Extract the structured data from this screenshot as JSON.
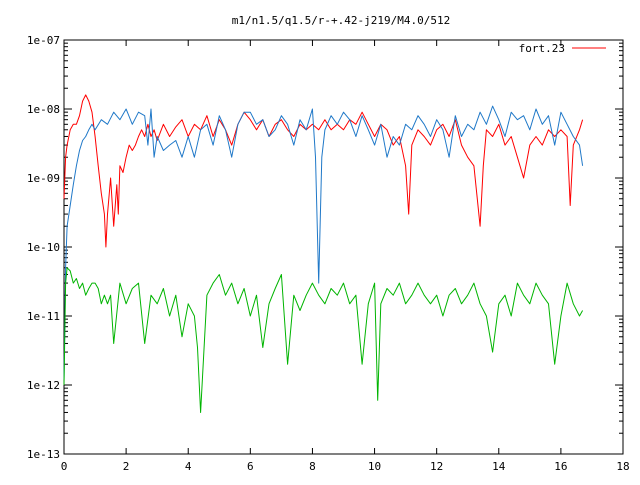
{
  "chart_data": {
    "type": "line",
    "title": "m1/n1.5/q1.5/r-+.42-j219/M4.0/512",
    "xlabel": "",
    "ylabel": "",
    "xlim": [
      0,
      18
    ],
    "ylim": [
      1e-13,
      1e-07
    ],
    "yscale": "log",
    "grid": false,
    "legend_position": "top-right",
    "x_ticks": [
      0,
      2,
      4,
      6,
      8,
      10,
      12,
      14,
      16,
      18
    ],
    "x_tick_labels": [
      "0",
      "2",
      "4",
      "6",
      "8",
      "10",
      "12",
      "14",
      "16",
      "18"
    ],
    "y_ticks": [
      1e-13,
      1e-12,
      1e-11,
      1e-10,
      1e-09,
      1e-08,
      1e-07
    ],
    "y_tick_labels": [
      "1e-13",
      "1e-12",
      "1e-11",
      "1e-10",
      "1e-09",
      "1e-08",
      "1e-07"
    ],
    "series": [
      {
        "name": "fort.23",
        "color": "#ff0000",
        "x": [
          0.0,
          0.05,
          0.1,
          0.2,
          0.3,
          0.4,
          0.5,
          0.6,
          0.7,
          0.8,
          0.9,
          1.0,
          1.1,
          1.2,
          1.3,
          1.35,
          1.4,
          1.5,
          1.6,
          1.7,
          1.75,
          1.8,
          1.9,
          2.0,
          2.1,
          2.2,
          2.3,
          2.4,
          2.5,
          2.6,
          2.7,
          2.8,
          2.9,
          3.0,
          3.2,
          3.4,
          3.6,
          3.8,
          4.0,
          4.2,
          4.4,
          4.6,
          4.8,
          5.0,
          5.2,
          5.4,
          5.6,
          5.8,
          6.0,
          6.2,
          6.4,
          6.6,
          6.8,
          7.0,
          7.2,
          7.4,
          7.6,
          7.8,
          8.0,
          8.2,
          8.4,
          8.6,
          8.8,
          9.0,
          9.2,
          9.4,
          9.6,
          9.8,
          10.0,
          10.2,
          10.4,
          10.6,
          10.8,
          11.0,
          11.1,
          11.2,
          11.4,
          11.6,
          11.8,
          12.0,
          12.2,
          12.4,
          12.6,
          12.8,
          13.0,
          13.2,
          13.4,
          13.5,
          13.6,
          13.8,
          14.0,
          14.2,
          14.4,
          14.6,
          14.8,
          15.0,
          15.2,
          15.4,
          15.6,
          15.8,
          16.0,
          16.2,
          16.3,
          16.4,
          16.6,
          16.7
        ],
        "y": [
          5e-10,
          2e-09,
          3e-09,
          5e-09,
          6e-09,
          6e-09,
          8e-09,
          1.3e-08,
          1.6e-08,
          1.3e-08,
          9e-09,
          4e-09,
          1.5e-09,
          6e-10,
          3e-10,
          1e-10,
          3e-10,
          1e-09,
          2e-10,
          8e-10,
          3e-10,
          1.5e-09,
          1.2e-09,
          2e-09,
          3e-09,
          2.5e-09,
          3e-09,
          4e-09,
          5e-09,
          4e-09,
          6e-09,
          4e-09,
          5e-09,
          3.5e-09,
          6e-09,
          4e-09,
          5.5e-09,
          7e-09,
          4e-09,
          6e-09,
          5e-09,
          8e-09,
          4e-09,
          7e-09,
          5e-09,
          3e-09,
          6e-09,
          9e-09,
          7e-09,
          5e-09,
          7e-09,
          4e-09,
          6e-09,
          7e-09,
          5e-09,
          4e-09,
          6e-09,
          5e-09,
          6e-09,
          5e-09,
          7e-09,
          5e-09,
          6e-09,
          5e-09,
          7e-09,
          6e-09,
          9e-09,
          6e-09,
          4e-09,
          6e-09,
          5e-09,
          3e-09,
          4e-09,
          1.5e-09,
          3e-10,
          3e-09,
          5e-09,
          4e-09,
          3e-09,
          5e-09,
          6e-09,
          4e-09,
          7e-09,
          3e-09,
          2e-09,
          1.5e-09,
          2e-10,
          1.5e-09,
          5e-09,
          4e-09,
          6e-09,
          3e-09,
          4e-09,
          2e-09,
          1e-09,
          3e-09,
          4e-09,
          3e-09,
          5e-09,
          4e-09,
          5e-09,
          4e-09,
          4e-10,
          3e-09,
          5e-09,
          7e-09
        ]
      },
      {
        "color": "#1f78c8",
        "x": [
          0.0,
          0.05,
          0.1,
          0.2,
          0.3,
          0.4,
          0.5,
          0.6,
          0.7,
          0.8,
          0.9,
          1.0,
          1.2,
          1.4,
          1.6,
          1.8,
          2.0,
          2.2,
          2.4,
          2.6,
          2.7,
          2.8,
          2.9,
          3.0,
          3.2,
          3.4,
          3.6,
          3.8,
          4.0,
          4.2,
          4.4,
          4.6,
          4.8,
          5.0,
          5.2,
          5.4,
          5.6,
          5.8,
          6.0,
          6.2,
          6.4,
          6.6,
          6.8,
          7.0,
          7.2,
          7.4,
          7.6,
          7.8,
          8.0,
          8.1,
          8.2,
          8.3,
          8.4,
          8.6,
          8.8,
          9.0,
          9.2,
          9.4,
          9.6,
          9.8,
          10.0,
          10.2,
          10.4,
          10.6,
          10.8,
          11.0,
          11.2,
          11.4,
          11.6,
          11.8,
          12.0,
          12.2,
          12.4,
          12.6,
          12.8,
          13.0,
          13.2,
          13.4,
          13.6,
          13.8,
          14.0,
          14.2,
          14.4,
          14.6,
          14.8,
          15.0,
          15.2,
          15.4,
          15.6,
          15.8,
          16.0,
          16.2,
          16.4,
          16.6,
          16.7
        ],
        "y": [
          1.2e-12,
          5e-11,
          2e-10,
          4e-10,
          8e-10,
          1.5e-09,
          2.5e-09,
          3.5e-09,
          4e-09,
          5e-09,
          6e-09,
          5e-09,
          7e-09,
          6e-09,
          9e-09,
          7e-09,
          1e-08,
          6e-09,
          9e-09,
          8e-09,
          3e-09,
          1e-08,
          2e-09,
          4e-09,
          2.5e-09,
          3e-09,
          3.5e-09,
          2e-09,
          4e-09,
          2e-09,
          5e-09,
          6e-09,
          3e-09,
          8e-09,
          5e-09,
          2e-09,
          6e-09,
          9e-09,
          9e-09,
          6e-09,
          7e-09,
          4e-09,
          5e-09,
          8e-09,
          6e-09,
          3e-09,
          7e-09,
          5e-09,
          1e-08,
          2e-09,
          3e-11,
          2e-09,
          5e-09,
          8e-09,
          6e-09,
          9e-09,
          7e-09,
          4e-09,
          8e-09,
          5e-09,
          3e-09,
          6e-09,
          2e-09,
          4e-09,
          3e-09,
          6e-09,
          5e-09,
          8e-09,
          6e-09,
          4e-09,
          7e-09,
          5e-09,
          2e-09,
          8e-09,
          4e-09,
          6e-09,
          5e-09,
          9e-09,
          6e-09,
          1.1e-08,
          7e-09,
          4e-09,
          9e-09,
          7e-09,
          8e-09,
          5e-09,
          1e-08,
          6e-09,
          8e-09,
          3e-09,
          9e-09,
          6e-09,
          4e-09,
          3e-09,
          1.5e-09
        ]
      },
      {
        "color": "#00b400",
        "x": [
          0.0,
          0.05,
          0.1,
          0.2,
          0.3,
          0.4,
          0.5,
          0.6,
          0.7,
          0.8,
          0.9,
          1.0,
          1.1,
          1.2,
          1.3,
          1.4,
          1.5,
          1.6,
          1.8,
          2.0,
          2.2,
          2.4,
          2.6,
          2.8,
          3.0,
          3.2,
          3.4,
          3.6,
          3.8,
          4.0,
          4.2,
          4.3,
          4.4,
          4.6,
          4.8,
          5.0,
          5.2,
          5.4,
          5.6,
          5.8,
          6.0,
          6.2,
          6.4,
          6.6,
          6.8,
          7.0,
          7.2,
          7.4,
          7.6,
          7.8,
          8.0,
          8.2,
          8.4,
          8.6,
          8.8,
          9.0,
          9.2,
          9.4,
          9.6,
          9.8,
          10.0,
          10.1,
          10.2,
          10.4,
          10.6,
          10.8,
          11.0,
          11.2,
          11.4,
          11.6,
          11.8,
          12.0,
          12.2,
          12.4,
          12.6,
          12.8,
          13.0,
          13.2,
          13.4,
          13.6,
          13.8,
          14.0,
          14.2,
          14.4,
          14.6,
          14.8,
          15.0,
          15.2,
          15.4,
          15.6,
          15.8,
          16.0,
          16.2,
          16.4,
          16.6,
          16.7
        ],
        "y": [
          1e-12,
          3e-11,
          5e-11,
          4.5e-11,
          3e-11,
          3.5e-11,
          2.5e-11,
          3e-11,
          2e-11,
          2.5e-11,
          3e-11,
          3e-11,
          2.5e-11,
          1.5e-11,
          2e-11,
          1.5e-11,
          2e-11,
          4e-12,
          3e-11,
          1.5e-11,
          2.5e-11,
          3e-11,
          4e-12,
          2e-11,
          1.5e-11,
          2.5e-11,
          1e-11,
          2e-11,
          5e-12,
          1.5e-11,
          1e-11,
          3.5e-12,
          4e-13,
          2e-11,
          3e-11,
          4e-11,
          2e-11,
          3e-11,
          1.5e-11,
          2.5e-11,
          1e-11,
          2e-11,
          3.5e-12,
          1.5e-11,
          2.5e-11,
          4e-11,
          2e-12,
          2e-11,
          1.2e-11,
          2e-11,
          3e-11,
          2e-11,
          1.5e-11,
          2.5e-11,
          2e-11,
          3e-11,
          1.5e-11,
          2e-11,
          2e-12,
          1.5e-11,
          3e-11,
          6e-13,
          1.5e-11,
          2.5e-11,
          2e-11,
          3e-11,
          1.5e-11,
          2e-11,
          3e-11,
          2e-11,
          1.5e-11,
          2e-11,
          1e-11,
          2e-11,
          2.5e-11,
          1.5e-11,
          2e-11,
          3e-11,
          1.5e-11,
          1e-11,
          3e-12,
          1.5e-11,
          2e-11,
          1e-11,
          3e-11,
          2e-11,
          1.5e-11,
          3e-11,
          2e-11,
          1.5e-11,
          2e-12,
          1e-11,
          3e-11,
          1.5e-11,
          1e-11,
          1.2e-11
        ]
      }
    ]
  }
}
